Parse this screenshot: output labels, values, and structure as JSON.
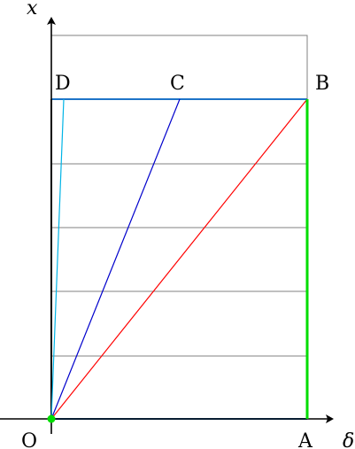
{
  "labels": {
    "x_axis": "x",
    "y_axis": "x",
    "delta_axis": "δ",
    "O": "O",
    "A": "A",
    "B": "B",
    "C": "C",
    "D": "D"
  },
  "colors": {
    "axes": "#000000",
    "grid": "#808080",
    "frame_blue": "#1e74c8",
    "OB": "#ff0000",
    "OC": "#0000cc",
    "OD": "#00b4e6",
    "AB": "#00dd00",
    "origin_dot": "#00dd00"
  }
}
